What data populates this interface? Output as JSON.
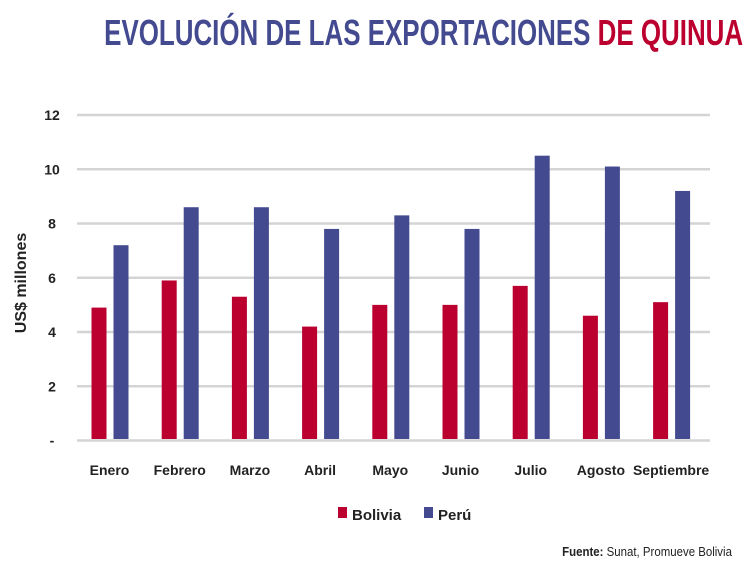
{
  "title": {
    "part1": "EVOLUCIÓN DE LAS EXPORTACIONES",
    "part2": "DE QUINUA",
    "color1": "#434a90",
    "color2": "#bb0030"
  },
  "source": {
    "label": "Fuente:",
    "text": "Sunat, Promueve Bolivia"
  },
  "chart_data": {
    "type": "bar",
    "title": "EVOLUCIÓN DE LAS EXPORTACIONES DE QUINUA",
    "xlabel": "",
    "ylabel": "US$ millones",
    "ylim": [
      0,
      12
    ],
    "yticks": [
      0,
      2,
      4,
      6,
      8,
      10,
      12
    ],
    "ytick_labels": [
      "-",
      "2",
      "4",
      "6",
      "8",
      "10",
      "12"
    ],
    "grid": true,
    "legend_position": "bottom-center",
    "categories": [
      "Enero",
      "Febrero",
      "Marzo",
      "Abril",
      "Mayo",
      "Junio",
      "Julio",
      "Agosto",
      "Septiembre"
    ],
    "series": [
      {
        "name": "Bolivia",
        "color": "#bb0030",
        "values": [
          4.9,
          5.9,
          5.3,
          4.2,
          5.0,
          5.0,
          5.7,
          4.6,
          5.1
        ]
      },
      {
        "name": "Perú",
        "color": "#434a90",
        "values": [
          7.2,
          8.6,
          8.6,
          7.8,
          8.3,
          7.8,
          10.5,
          10.1,
          9.2
        ]
      }
    ]
  }
}
